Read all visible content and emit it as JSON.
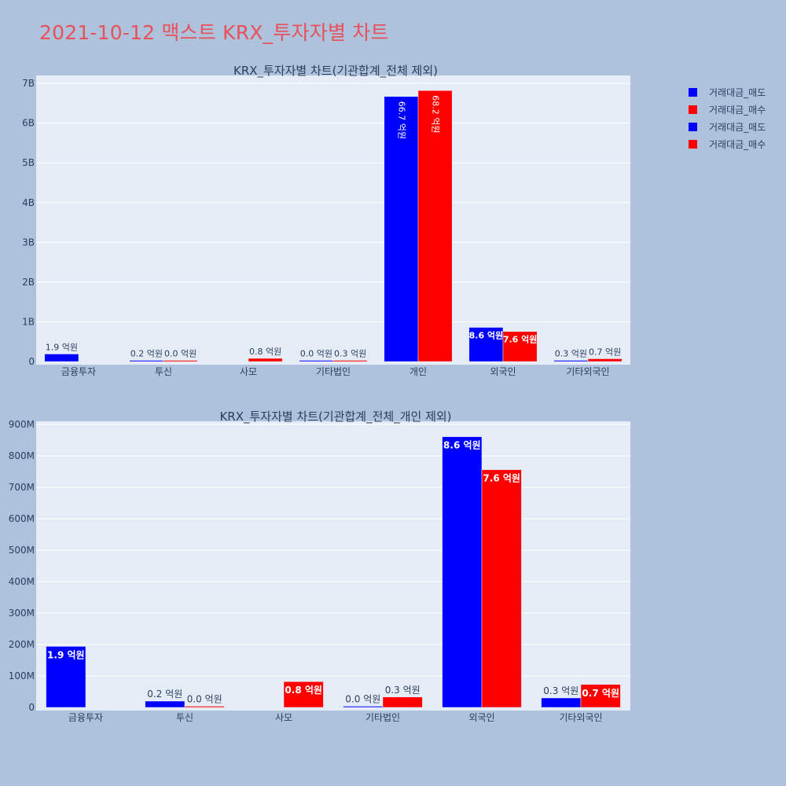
{
  "page_title": "2021-10-12 맥스트 KRX_투자자별 차트",
  "legend": [
    {
      "label": "거래대금_매도",
      "color": "#0000ff"
    },
    {
      "label": "거래대금_매수",
      "color": "#ff0000"
    },
    {
      "label": "거래대금_매도",
      "color": "#0000ff"
    },
    {
      "label": "거래대금_매수",
      "color": "#ff0000"
    }
  ],
  "chart_data": [
    {
      "type": "bar",
      "title": "KRX_투자자별 차트(기관합계_전체 제외)",
      "categories": [
        "금융투자",
        "투신",
        "사모",
        "기타법인",
        "개인",
        "외국인",
        "기타외국인"
      ],
      "ylim": [
        0,
        7200000000
      ],
      "yticks": [
        0,
        1000000000,
        2000000000,
        3000000000,
        4000000000,
        5000000000,
        6000000000,
        7000000000
      ],
      "ytick_labels": [
        "0",
        "1B",
        "2B",
        "3B",
        "4B",
        "5B",
        "6B",
        "7B"
      ],
      "series": [
        {
          "name": "거래대금_매도",
          "color": "#0000ff",
          "values": [
            190000000,
            20000000,
            0,
            2000000,
            6670000000,
            860000000,
            30000000
          ],
          "labels": [
            "1.9 억원",
            "0.2 억원",
            "",
            "0.0 억원",
            "66.7 억원",
            "8.6 억원",
            "0.3 억원"
          ]
        },
        {
          "name": "거래대금_매수",
          "color": "#ff0000",
          "values": [
            0,
            2000000,
            80000000,
            30000000,
            6820000000,
            757000000,
            70000000
          ],
          "labels": [
            "",
            "0.0 억원",
            "0.8 억원",
            "0.3 억원",
            "68.2 억원",
            "7.6 억원",
            "0.7 억원"
          ]
        }
      ]
    },
    {
      "type": "bar",
      "title": "KRX_투자자별 차트(기관합계_전체_개인 제외)",
      "categories": [
        "금융투자",
        "투신",
        "사모",
        "기타법인",
        "외국인",
        "기타외국인"
      ],
      "ylim": [
        0,
        910000000
      ],
      "yticks": [
        0,
        100000000,
        200000000,
        300000000,
        400000000,
        500000000,
        600000000,
        700000000,
        800000000,
        900000000
      ],
      "ytick_labels": [
        "0",
        "100M",
        "200M",
        "300M",
        "400M",
        "500M",
        "600M",
        "700M",
        "800M",
        "900M"
      ],
      "series": [
        {
          "name": "거래대금_매도",
          "color": "#0000ff",
          "values": [
            194000000,
            20000000,
            0,
            2000000,
            861000000,
            30000000
          ],
          "labels": [
            "1.9 억원",
            "0.2 억원",
            "",
            "0.0 억원",
            "8.6 억원",
            "0.3 억원"
          ]
        },
        {
          "name": "거래대금_매수",
          "color": "#ff0000",
          "values": [
            0,
            2000000,
            82000000,
            33000000,
            756000000,
            73000000
          ],
          "labels": [
            "",
            "0.0 억원",
            "0.8 억원",
            "0.3 억원",
            "7.6 억원",
            "0.7 억원"
          ]
        }
      ]
    }
  ]
}
